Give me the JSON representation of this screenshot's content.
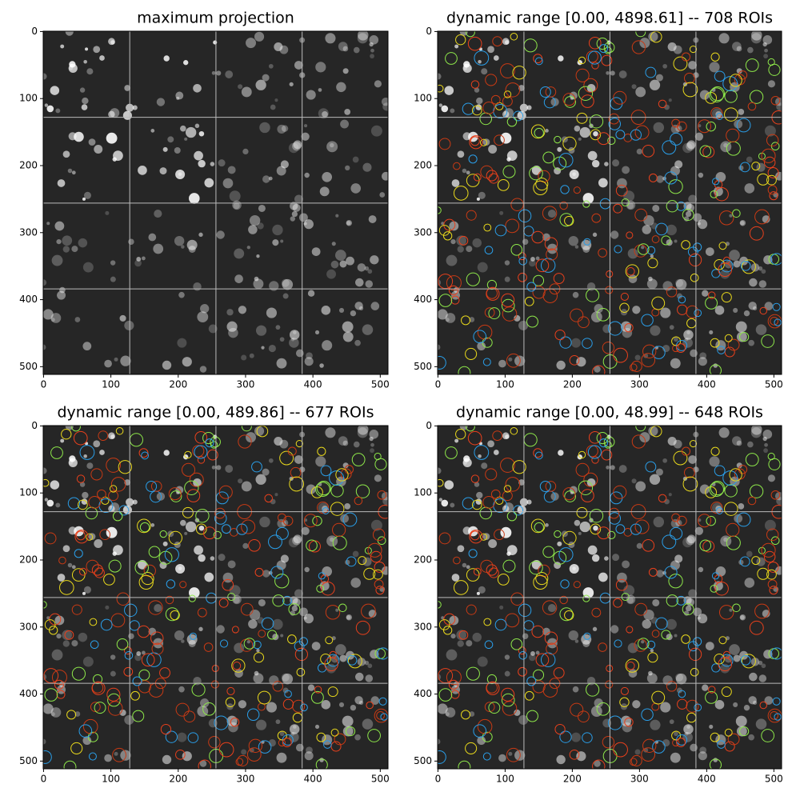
{
  "chart_data": [
    {
      "type": "image",
      "title": "maximum projection",
      "xlim": [
        -0.5,
        511.5
      ],
      "ylim": [
        511.5,
        -0.5
      ],
      "xticks": [
        0,
        100,
        200,
        300,
        400,
        500
      ],
      "yticks": [
        0,
        100,
        200,
        300,
        400,
        500
      ],
      "gridlines": [
        128,
        256,
        384
      ],
      "rois": false
    },
    {
      "type": "image",
      "title": "dynamic range [0.00, 4898.61] -- 708 ROIs",
      "xlim": [
        -0.5,
        511.5
      ],
      "ylim": [
        511.5,
        -0.5
      ],
      "xticks": [
        0,
        100,
        200,
        300,
        400,
        500
      ],
      "yticks": [
        0,
        100,
        200,
        300,
        400,
        500
      ],
      "gridlines": [
        128,
        256,
        384
      ],
      "rois": true
    },
    {
      "type": "image",
      "title": "dynamic range [0.00, 489.86] -- 677 ROIs",
      "xlim": [
        -0.5,
        511.5
      ],
      "ylim": [
        511.5,
        -0.5
      ],
      "xticks": [
        0,
        100,
        200,
        300,
        400,
        500
      ],
      "yticks": [
        0,
        100,
        200,
        300,
        400,
        500
      ],
      "gridlines": [
        128,
        256,
        384
      ],
      "rois": true
    },
    {
      "type": "image",
      "title": "dynamic range [0.00, 48.99] -- 648 ROIs",
      "xlim": [
        -0.5,
        511.5
      ],
      "ylim": [
        511.5,
        -0.5
      ],
      "xticks": [
        0,
        100,
        200,
        300,
        400,
        500
      ],
      "yticks": [
        0,
        100,
        200,
        300,
        400,
        500
      ],
      "gridlines": [
        128,
        256,
        384
      ],
      "rois": true
    }
  ]
}
